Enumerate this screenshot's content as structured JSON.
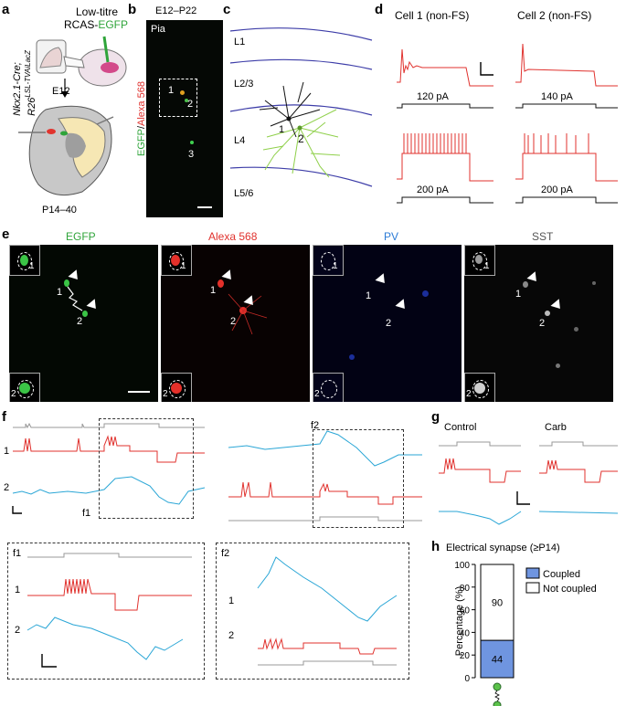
{
  "panels": {
    "a": {
      "label": "a",
      "title_line1": "Low-titre",
      "title_line2_prefix": "RCAS-",
      "title_line2_green": "EGFP",
      "mouse_line1": "Nkx2.1-Cre;",
      "mouse_line2": "R26",
      "mouse_sup": "LSL-TVAiLacZ",
      "age_inject": "E12",
      "age_analysis": "P14–40"
    },
    "b": {
      "label": "b",
      "title": "E12–P22",
      "pia": "Pia",
      "ylabel_green": "EGFP",
      "ylabel_sep": "/",
      "ylabel_red": "Alexa 568",
      "cell1": "1",
      "cell2": "2",
      "cell3": "3"
    },
    "c": {
      "label": "c",
      "layers": [
        "L1",
        "L2/3",
        "L4",
        "L5/6"
      ],
      "cell1": "1",
      "cell2": "2"
    },
    "d": {
      "label": "d",
      "cell1_title": "Cell 1 (non-FS)",
      "cell2_title": "Cell 2 (non-FS)",
      "currents": [
        "120 pA",
        "140 pA",
        "200 pA",
        "200 pA"
      ]
    },
    "e": {
      "label": "e",
      "channels": [
        {
          "name": "EGFP",
          "color": "#2fa43a"
        },
        {
          "name": "Alexa 568",
          "color": "#e0322e"
        },
        {
          "name": "PV",
          "color": "#2b7bd6"
        },
        {
          "name": "SST",
          "color": "#555555"
        }
      ],
      "cell1": "1",
      "cell2": "2"
    },
    "f": {
      "label": "f",
      "trace1": "1",
      "trace2": "2",
      "sub1": "f1",
      "sub2": "f2"
    },
    "g": {
      "label": "g",
      "control": "Control",
      "carb": "Carb"
    },
    "h": {
      "label": "h",
      "title": "Electrical synapse (≥P14)",
      "ylabel": "Percentage (%)",
      "yticks": [
        "0",
        "20",
        "40",
        "60",
        "80",
        "100"
      ]
    }
  },
  "chart_data": {
    "type": "bar",
    "title": "Electrical synapse (≥P14)",
    "ylabel": "Percentage (%)",
    "ylim": [
      0,
      100
    ],
    "legend_placement": "right",
    "stacked": true,
    "series": [
      {
        "name": "Coupled",
        "color": "#6f95e0",
        "count": 44,
        "percent": 33
      },
      {
        "name": "Not coupled",
        "color": "#ffffff",
        "count": 90,
        "percent": 67
      }
    ]
  }
}
